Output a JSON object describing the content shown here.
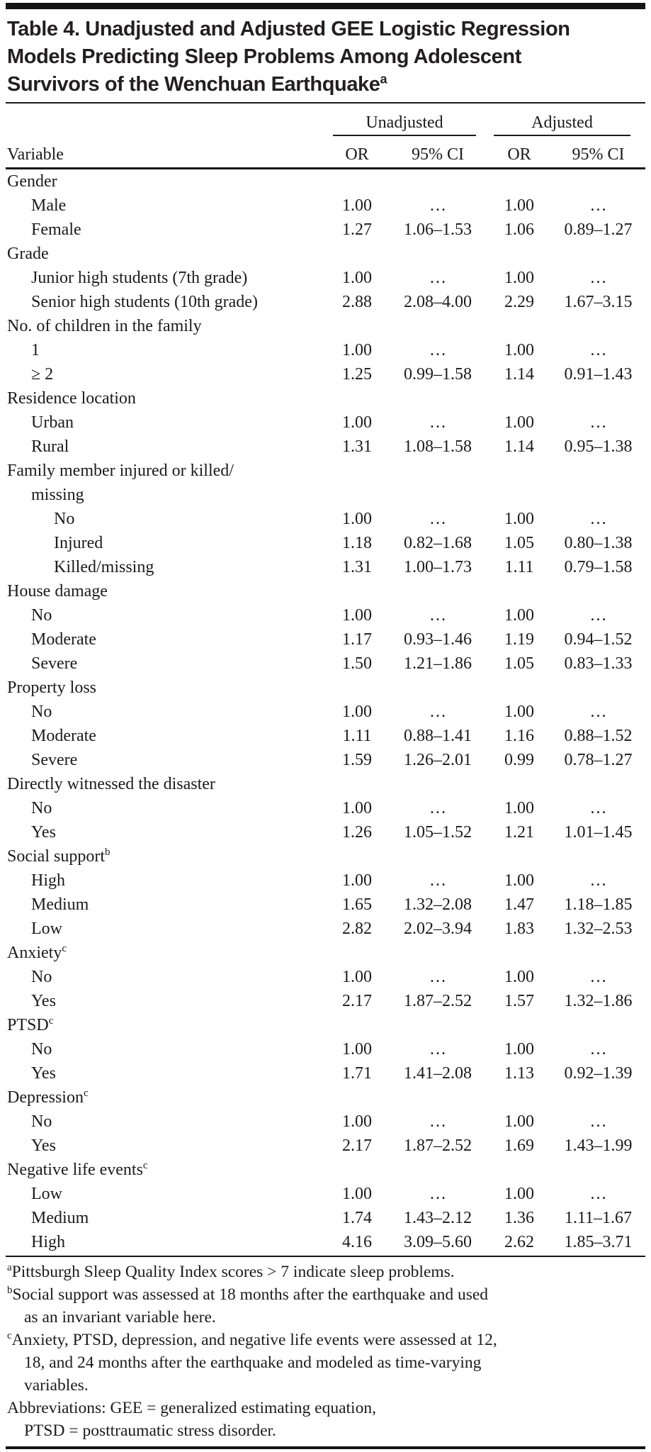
{
  "title_lines": [
    "Table 4. Unadjusted and Adjusted GEE Logistic Regression",
    "Models Predicting Sleep Problems Among Adolescent",
    "Survivors of the Wenchuan Earthquake"
  ],
  "title_superscript": "a",
  "table": {
    "spanners": [
      "Unadjusted",
      "Adjusted"
    ],
    "columns": [
      "Variable",
      "OR",
      "95% CI",
      "OR",
      "95% CI"
    ],
    "rows": [
      {
        "label": "Gender",
        "indent": 0,
        "values": [
          "",
          "",
          "",
          ""
        ]
      },
      {
        "label": "Male",
        "indent": 1,
        "values": [
          "1.00",
          "…",
          "1.00",
          "…"
        ]
      },
      {
        "label": "Female",
        "indent": 1,
        "values": [
          "1.27",
          "1.06–1.53",
          "1.06",
          "0.89–1.27"
        ]
      },
      {
        "label": "Grade",
        "indent": 0,
        "values": [
          "",
          "",
          "",
          ""
        ]
      },
      {
        "label": "Junior high students (7th grade)",
        "indent": 1,
        "values": [
          "1.00",
          "…",
          "1.00",
          "…"
        ]
      },
      {
        "label": "Senior high students (10th grade)",
        "indent": 1,
        "values": [
          "2.88",
          "2.08–4.00",
          "2.29",
          "1.67–3.15"
        ]
      },
      {
        "label": "No. of children in the family",
        "indent": 0,
        "values": [
          "",
          "",
          "",
          ""
        ]
      },
      {
        "label": "1",
        "indent": 1,
        "values": [
          "1.00",
          "…",
          "1.00",
          "…"
        ]
      },
      {
        "label": "≥ 2",
        "indent": 1,
        "values": [
          "1.25",
          "0.99–1.58",
          "1.14",
          "0.91–1.43"
        ]
      },
      {
        "label": "Residence location",
        "indent": 0,
        "values": [
          "",
          "",
          "",
          ""
        ]
      },
      {
        "label": "Urban",
        "indent": 1,
        "values": [
          "1.00",
          "…",
          "1.00",
          "…"
        ]
      },
      {
        "label": "Rural",
        "indent": 1,
        "values": [
          "1.31",
          "1.08–1.58",
          "1.14",
          "0.95–1.38"
        ]
      },
      {
        "label": "Family member injured or killed/",
        "indent": 0,
        "values": [
          "",
          "",
          "",
          ""
        ]
      },
      {
        "label": "missing",
        "indent": 1,
        "values": [
          "",
          "",
          "",
          ""
        ]
      },
      {
        "label": "No",
        "indent": 2,
        "values": [
          "1.00",
          "…",
          "1.00",
          "…"
        ]
      },
      {
        "label": "Injured",
        "indent": 2,
        "values": [
          "1.18",
          "0.82–1.68",
          "1.05",
          "0.80–1.38"
        ]
      },
      {
        "label": "Killed/missing",
        "indent": 2,
        "values": [
          "1.31",
          "1.00–1.73",
          "1.11",
          "0.79–1.58"
        ]
      },
      {
        "label": "House damage",
        "indent": 0,
        "values": [
          "",
          "",
          "",
          ""
        ]
      },
      {
        "label": "No",
        "indent": 1,
        "values": [
          "1.00",
          "…",
          "1.00",
          "…"
        ]
      },
      {
        "label": "Moderate",
        "indent": 1,
        "values": [
          "1.17",
          "0.93–1.46",
          "1.19",
          "0.94–1.52"
        ]
      },
      {
        "label": "Severe",
        "indent": 1,
        "values": [
          "1.50",
          "1.21–1.86",
          "1.05",
          "0.83–1.33"
        ]
      },
      {
        "label": "Property loss",
        "indent": 0,
        "values": [
          "",
          "",
          "",
          ""
        ]
      },
      {
        "label": "No",
        "indent": 1,
        "values": [
          "1.00",
          "…",
          "1.00",
          "…"
        ]
      },
      {
        "label": "Moderate",
        "indent": 1,
        "values": [
          "1.11",
          "0.88–1.41",
          "1.16",
          "0.88–1.52"
        ]
      },
      {
        "label": "Severe",
        "indent": 1,
        "values": [
          "1.59",
          "1.26–2.01",
          "0.99",
          "0.78–1.27"
        ]
      },
      {
        "label": "Directly witnessed the disaster",
        "indent": 0,
        "values": [
          "",
          "",
          "",
          ""
        ]
      },
      {
        "label": "No",
        "indent": 1,
        "values": [
          "1.00",
          "…",
          "1.00",
          "…"
        ]
      },
      {
        "label": "Yes",
        "indent": 1,
        "values": [
          "1.26",
          "1.05–1.52",
          "1.21",
          "1.01–1.45"
        ]
      },
      {
        "label": "Social support",
        "sup": "b",
        "indent": 0,
        "values": [
          "",
          "",
          "",
          ""
        ]
      },
      {
        "label": "High",
        "indent": 1,
        "values": [
          "1.00",
          "…",
          "1.00",
          "…"
        ]
      },
      {
        "label": "Medium",
        "indent": 1,
        "values": [
          "1.65",
          "1.32–2.08",
          "1.47",
          "1.18–1.85"
        ]
      },
      {
        "label": "Low",
        "indent": 1,
        "values": [
          "2.82",
          "2.02–3.94",
          "1.83",
          "1.32–2.53"
        ]
      },
      {
        "label": "Anxiety",
        "sup": "c",
        "indent": 0,
        "values": [
          "",
          "",
          "",
          ""
        ]
      },
      {
        "label": "No",
        "indent": 1,
        "values": [
          "1.00",
          "…",
          "1.00",
          "…"
        ]
      },
      {
        "label": "Yes",
        "indent": 1,
        "values": [
          "2.17",
          "1.87–2.52",
          "1.57",
          "1.32–1.86"
        ]
      },
      {
        "label": "PTSD",
        "sup": "c",
        "indent": 0,
        "values": [
          "",
          "",
          "",
          ""
        ]
      },
      {
        "label": "No",
        "indent": 1,
        "values": [
          "1.00",
          "…",
          "1.00",
          "…"
        ]
      },
      {
        "label": "Yes",
        "indent": 1,
        "values": [
          "1.71",
          "1.41–2.08",
          "1.13",
          "0.92–1.39"
        ]
      },
      {
        "label": "Depression",
        "sup": "c",
        "indent": 0,
        "values": [
          "",
          "",
          "",
          ""
        ]
      },
      {
        "label": "No",
        "indent": 1,
        "values": [
          "1.00",
          "…",
          "1.00",
          "…"
        ]
      },
      {
        "label": "Yes",
        "indent": 1,
        "values": [
          "2.17",
          "1.87–2.52",
          "1.69",
          "1.43–1.99"
        ]
      },
      {
        "label": "Negative life events",
        "sup": "c",
        "indent": 0,
        "values": [
          "",
          "",
          "",
          ""
        ]
      },
      {
        "label": "Low",
        "indent": 1,
        "values": [
          "1.00",
          "…",
          "1.00",
          "…"
        ]
      },
      {
        "label": "Medium",
        "indent": 1,
        "values": [
          "1.74",
          "1.43–2.12",
          "1.36",
          "1.11–1.67"
        ]
      },
      {
        "label": "High",
        "indent": 1,
        "values": [
          "4.16",
          "3.09–5.60",
          "2.62",
          "1.85–3.71"
        ]
      }
    ]
  },
  "footnotes": [
    {
      "marker": "a",
      "lines": [
        "Pittsburgh Sleep Quality Index scores > 7 indicate sleep problems."
      ]
    },
    {
      "marker": "b",
      "lines": [
        "Social support was assessed at 18 months after the earthquake and used",
        "as an invariant variable here."
      ]
    },
    {
      "marker": "c",
      "lines": [
        "Anxiety, PTSD, depression, and negative life events were assessed at 12,",
        "18, and 24 months after the earthquake and modeled as time-varying",
        "variables."
      ]
    },
    {
      "marker": "",
      "lines": [
        "Abbreviations: GEE = generalized estimating equation,",
        "PTSD = posttraumatic stress disorder."
      ]
    }
  ],
  "colors": {
    "background": "#ffffff",
    "text": "#1b1b1b",
    "title": "#231f20",
    "rule": "#151515"
  }
}
